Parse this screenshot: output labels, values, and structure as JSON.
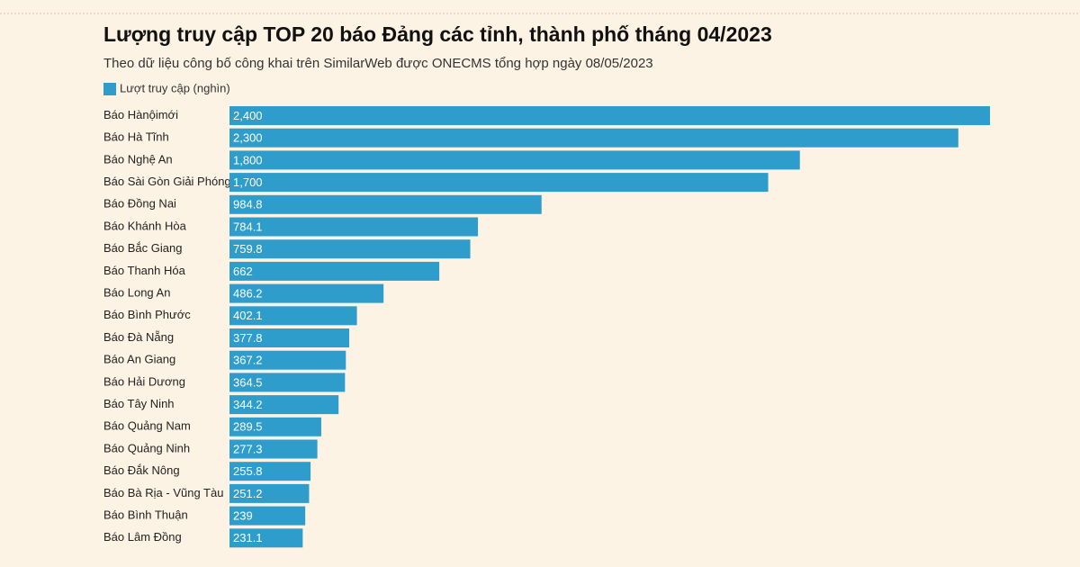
{
  "chart_data": {
    "type": "bar",
    "orientation": "horizontal",
    "title": "Lượng truy cập TOP 20 báo Đảng các tỉnh, thành phố tháng 04/2023",
    "subtitle": "Theo dữ liệu công bố công khai trên SimilarWeb được ONECMS tổng hợp ngày 08/05/2023",
    "categories": [
      "Báo Hànộimới",
      "Báo Hà Tĩnh",
      "Báo Nghệ An",
      "Báo Sài Gòn Giải Phóng",
      "Báo Đồng Nai",
      "Báo Khánh Hòa",
      "Báo Bắc Giang",
      "Báo Thanh Hóa",
      "Báo Long An",
      "Báo Bình Phước",
      "Báo Đà Nẵng",
      "Báo An Giang",
      "Báo Hải Dương",
      "Báo Tây Ninh",
      "Báo Quảng Nam",
      "Báo Quảng Ninh",
      "Báo Đắk Nông",
      "Báo Bà Rịa - Vũng Tàu",
      "Báo Bình Thuận",
      "Báo Lâm Đồng"
    ],
    "series": [
      {
        "name": "Lượt truy cập (nghìn)",
        "color": "#2e9dcb",
        "values": [
          2400,
          2300,
          1800,
          1700,
          984.8,
          784.1,
          759.8,
          662,
          486.2,
          402.1,
          377.8,
          367.2,
          364.5,
          344.2,
          289.5,
          277.3,
          255.8,
          251.2,
          239,
          231.1
        ],
        "value_labels": [
          "2,400",
          "2,300",
          "1,800",
          "1,700",
          "984.8",
          "784.1",
          "759.8",
          "662",
          "486.2",
          "402.1",
          "377.8",
          "367.2",
          "364.5",
          "344.2",
          "289.5",
          "277.3",
          "255.8",
          "251.2",
          "239",
          "231.1"
        ]
      }
    ]
  }
}
